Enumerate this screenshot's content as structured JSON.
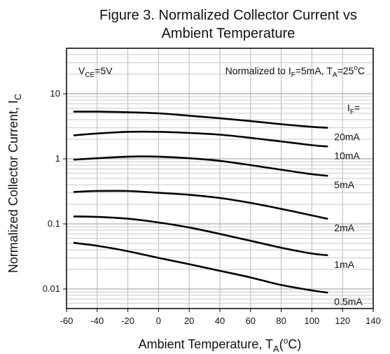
{
  "chart_data": {
    "type": "line",
    "title_line1": "Figure 3. Normalized Collector Current vs",
    "title_line2": "Ambient Temperature",
    "xlabel": {
      "text": "Ambient Temperature, T",
      "sub": "A",
      "tail": "(",
      "sup": "o",
      "end": "C)"
    },
    "ylabel": {
      "text": "Normalized Collector Current, I",
      "sub": "C"
    },
    "x_ticks": [
      "-60",
      "-40",
      "-20",
      "0",
      "20",
      "40",
      "60",
      "80",
      "100",
      "120",
      "140"
    ],
    "y_ticks": [
      {
        "label": "10",
        "value": 10
      },
      {
        "label": "1",
        "value": 1
      },
      {
        "label": "0.1",
        "value": 0.1
      },
      {
        "label": "0.01",
        "value": 0.01
      }
    ],
    "xlim": [
      -60,
      140
    ],
    "ylim": [
      0.005,
      50
    ],
    "y_scale": "log",
    "grid": true,
    "annotation_vce": {
      "text": "V",
      "sub": "CE",
      "tail": "=5V"
    },
    "annotation_norm": {
      "text": "Normalized to I",
      "sub1": "F",
      "mid": "=5mA, T",
      "sub2": "A",
      "mid2": "=25",
      "sup": "o",
      "end": "C"
    },
    "legend_header": "I",
    "legend_header_sub": "F",
    "legend_header_tail": "=",
    "series": [
      {
        "name": "20mA",
        "x": [
          -55,
          -40,
          -20,
          0,
          20,
          40,
          60,
          80,
          100,
          110
        ],
        "y": [
          5.3,
          5.3,
          5.2,
          5.0,
          4.6,
          4.2,
          3.8,
          3.4,
          3.1,
          3.0
        ]
      },
      {
        "name": "10mA",
        "x": [
          -55,
          -40,
          -20,
          0,
          20,
          40,
          60,
          80,
          100,
          110
        ],
        "y": [
          2.3,
          2.45,
          2.6,
          2.6,
          2.5,
          2.35,
          2.1,
          1.85,
          1.62,
          1.55
        ]
      },
      {
        "name": "5mA",
        "x": [
          -55,
          -40,
          -20,
          0,
          20,
          40,
          60,
          80,
          100,
          110
        ],
        "y": [
          0.97,
          1.02,
          1.08,
          1.08,
          1.02,
          0.93,
          0.8,
          0.68,
          0.58,
          0.55
        ]
      },
      {
        "name": "2mA",
        "x": [
          -55,
          -40,
          -20,
          0,
          20,
          40,
          60,
          80,
          100,
          110
        ],
        "y": [
          0.31,
          0.32,
          0.32,
          0.3,
          0.28,
          0.25,
          0.21,
          0.17,
          0.135,
          0.12
        ]
      },
      {
        "name": "1mA",
        "x": [
          -55,
          -40,
          -20,
          0,
          20,
          40,
          60,
          80,
          100,
          110
        ],
        "y": [
          0.13,
          0.128,
          0.12,
          0.105,
          0.088,
          0.07,
          0.055,
          0.043,
          0.035,
          0.033
        ]
      },
      {
        "name": "0.5mA",
        "x": [
          -55,
          -40,
          -20,
          0,
          20,
          40,
          60,
          80,
          100,
          110
        ],
        "y": [
          0.051,
          0.046,
          0.038,
          0.03,
          0.024,
          0.019,
          0.015,
          0.0115,
          0.0095,
          0.0088
        ]
      }
    ]
  }
}
